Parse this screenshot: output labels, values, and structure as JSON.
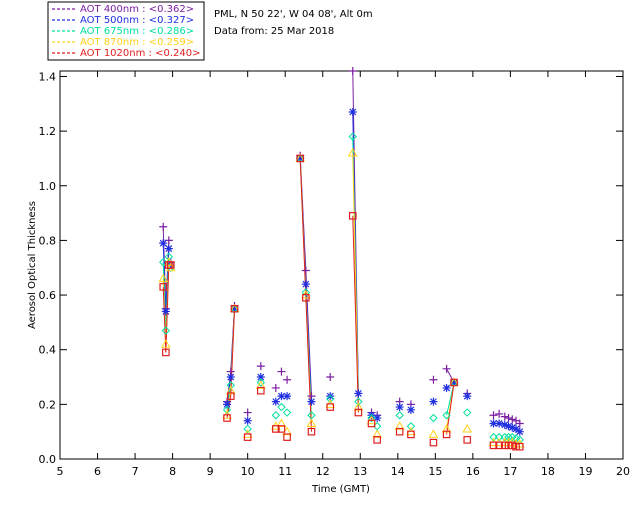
{
  "info": {
    "location": "PML, N 50 22', W 04 08', Alt 0m",
    "date_line": "Data from: 25 Mar 2018"
  },
  "chart_data": {
    "type": "scatter",
    "xlabel": "Time (GMT)",
    "ylabel": "Aerosol Optical Thickness",
    "xlim": [
      5,
      20
    ],
    "ylim": [
      0,
      1.42
    ],
    "x_ticks": [
      5,
      6,
      7,
      8,
      9,
      10,
      11,
      12,
      13,
      14,
      15,
      16,
      17,
      18,
      19,
      20
    ],
    "y_ticks": [
      0.0,
      0.2,
      0.4,
      0.6,
      0.8,
      1.0,
      1.2,
      1.4
    ],
    "legend_position": "top-left outside",
    "series": [
      {
        "name": "AOT  400nm : <0.362>",
        "color": "#7b1fa2",
        "marker": "plus",
        "points": [
          [
            7.75,
            0.85
          ],
          [
            7.82,
            0.55
          ],
          [
            7.9,
            0.8
          ],
          [
            7.95,
            0.72
          ],
          [
            9.45,
            0.21
          ],
          [
            9.55,
            0.32
          ],
          [
            9.65,
            0.56
          ],
          [
            10.0,
            0.17
          ],
          [
            10.35,
            0.34
          ],
          [
            10.75,
            0.26
          ],
          [
            10.9,
            0.32
          ],
          [
            11.05,
            0.29
          ],
          [
            11.4,
            1.11
          ],
          [
            11.55,
            0.69
          ],
          [
            11.7,
            0.23
          ],
          [
            12.2,
            0.3
          ],
          [
            12.8,
            1.43
          ],
          [
            12.95,
            0.24
          ],
          [
            13.3,
            0.17
          ],
          [
            13.45,
            0.16
          ],
          [
            14.05,
            0.21
          ],
          [
            14.35,
            0.2
          ],
          [
            14.95,
            0.29
          ],
          [
            15.3,
            0.33
          ],
          [
            15.5,
            0.28
          ],
          [
            15.85,
            0.24
          ],
          [
            16.55,
            0.16
          ],
          [
            16.7,
            0.165
          ],
          [
            16.85,
            0.155
          ],
          [
            16.95,
            0.15
          ],
          [
            17.05,
            0.145
          ],
          [
            17.15,
            0.14
          ],
          [
            17.25,
            0.13
          ]
        ]
      },
      {
        "name": "AOT  500nm : <0.327>",
        "color": "#2030e0",
        "marker": "star",
        "points": [
          [
            7.75,
            0.79
          ],
          [
            7.82,
            0.54
          ],
          [
            7.9,
            0.77
          ],
          [
            7.95,
            0.71
          ],
          [
            9.45,
            0.2
          ],
          [
            9.55,
            0.3
          ],
          [
            9.65,
            0.55
          ],
          [
            10.0,
            0.14
          ],
          [
            10.35,
            0.3
          ],
          [
            10.75,
            0.21
          ],
          [
            10.9,
            0.23
          ],
          [
            11.05,
            0.23
          ],
          [
            11.4,
            1.1
          ],
          [
            11.55,
            0.64
          ],
          [
            11.7,
            0.21
          ],
          [
            12.2,
            0.23
          ],
          [
            12.8,
            1.27
          ],
          [
            12.95,
            0.24
          ],
          [
            13.3,
            0.16
          ],
          [
            13.45,
            0.15
          ],
          [
            14.05,
            0.19
          ],
          [
            14.35,
            0.18
          ],
          [
            14.95,
            0.21
          ],
          [
            15.3,
            0.26
          ],
          [
            15.5,
            0.28
          ],
          [
            15.85,
            0.23
          ],
          [
            16.55,
            0.13
          ],
          [
            16.7,
            0.13
          ],
          [
            16.85,
            0.125
          ],
          [
            16.95,
            0.12
          ],
          [
            17.05,
            0.115
          ],
          [
            17.15,
            0.11
          ],
          [
            17.25,
            0.1
          ]
        ]
      },
      {
        "name": "AOT  675nm : <0.286>",
        "color": "#00e0a0",
        "marker": "diamond",
        "points": [
          [
            7.75,
            0.72
          ],
          [
            7.82,
            0.47
          ],
          [
            7.9,
            0.74
          ],
          [
            7.95,
            0.7
          ],
          [
            9.45,
            0.18
          ],
          [
            9.55,
            0.27
          ],
          [
            9.65,
            0.55
          ],
          [
            10.0,
            0.11
          ],
          [
            10.35,
            0.28
          ],
          [
            10.75,
            0.16
          ],
          [
            10.9,
            0.19
          ],
          [
            11.05,
            0.17
          ],
          [
            11.4,
            1.1
          ],
          [
            11.55,
            0.61
          ],
          [
            11.7,
            0.16
          ],
          [
            12.2,
            0.22
          ],
          [
            12.8,
            1.18
          ],
          [
            12.95,
            0.21
          ],
          [
            13.3,
            0.15
          ],
          [
            13.45,
            0.12
          ],
          [
            14.05,
            0.16
          ],
          [
            14.35,
            0.12
          ],
          [
            14.95,
            0.15
          ],
          [
            15.3,
            0.16
          ],
          [
            15.5,
            0.28
          ],
          [
            15.85,
            0.17
          ],
          [
            16.55,
            0.08
          ],
          [
            16.7,
            0.08
          ],
          [
            16.85,
            0.08
          ],
          [
            16.95,
            0.08
          ],
          [
            17.05,
            0.08
          ],
          [
            17.15,
            0.075
          ],
          [
            17.25,
            0.07
          ]
        ]
      },
      {
        "name": "AOT  870nm : <0.259>",
        "color": "#ffd21a",
        "marker": "triangle",
        "points": [
          [
            7.75,
            0.66
          ],
          [
            7.82,
            0.42
          ],
          [
            7.9,
            0.72
          ],
          [
            7.95,
            0.7
          ],
          [
            9.45,
            0.16
          ],
          [
            9.55,
            0.25
          ],
          [
            9.65,
            0.55
          ],
          [
            10.0,
            0.09
          ],
          [
            10.35,
            0.27
          ],
          [
            10.75,
            0.12
          ],
          [
            10.9,
            0.13
          ],
          [
            11.05,
            0.1
          ],
          [
            11.4,
            1.1
          ],
          [
            11.55,
            0.6
          ],
          [
            11.7,
            0.13
          ],
          [
            12.2,
            0.2
          ],
          [
            12.8,
            1.12
          ],
          [
            12.95,
            0.19
          ],
          [
            13.3,
            0.14
          ],
          [
            13.45,
            0.09
          ],
          [
            14.05,
            0.12
          ],
          [
            14.35,
            0.1
          ],
          [
            14.95,
            0.09
          ],
          [
            15.3,
            0.11
          ],
          [
            15.5,
            0.28
          ],
          [
            15.85,
            0.11
          ],
          [
            16.55,
            0.06
          ],
          [
            16.7,
            0.06
          ],
          [
            16.85,
            0.06
          ],
          [
            16.95,
            0.06
          ],
          [
            17.05,
            0.06
          ],
          [
            17.15,
            0.055
          ],
          [
            17.25,
            0.055
          ]
        ]
      },
      {
        "name": "AOT 1020nm : <0.240>",
        "color": "#e02020",
        "marker": "square",
        "points": [
          [
            7.75,
            0.63
          ],
          [
            7.82,
            0.39
          ],
          [
            7.9,
            0.71
          ],
          [
            7.95,
            0.71
          ],
          [
            9.45,
            0.15
          ],
          [
            9.55,
            0.23
          ],
          [
            9.65,
            0.55
          ],
          [
            10.0,
            0.08
          ],
          [
            10.35,
            0.25
          ],
          [
            10.75,
            0.11
          ],
          [
            10.9,
            0.11
          ],
          [
            11.05,
            0.08
          ],
          [
            11.4,
            1.1
          ],
          [
            11.55,
            0.59
          ],
          [
            11.7,
            0.1
          ],
          [
            12.2,
            0.19
          ],
          [
            12.8,
            0.89
          ],
          [
            12.95,
            0.17
          ],
          [
            13.3,
            0.13
          ],
          [
            13.45,
            0.07
          ],
          [
            14.05,
            0.1
          ],
          [
            14.35,
            0.09
          ],
          [
            14.95,
            0.06
          ],
          [
            15.3,
            0.09
          ],
          [
            15.5,
            0.28
          ],
          [
            15.85,
            0.07
          ],
          [
            16.55,
            0.05
          ],
          [
            16.7,
            0.05
          ],
          [
            16.85,
            0.05
          ],
          [
            16.95,
            0.05
          ],
          [
            17.05,
            0.05
          ],
          [
            17.15,
            0.045
          ],
          [
            17.25,
            0.045
          ]
        ]
      }
    ],
    "connected_segments": [
      [
        7.75,
        7.82
      ],
      [
        7.82,
        7.9
      ],
      [
        9.45,
        9.55
      ],
      [
        9.55,
        9.65
      ],
      [
        11.4,
        11.55
      ],
      [
        11.55,
        11.7
      ],
      [
        12.8,
        12.95
      ],
      [
        15.3,
        15.5
      ]
    ]
  }
}
